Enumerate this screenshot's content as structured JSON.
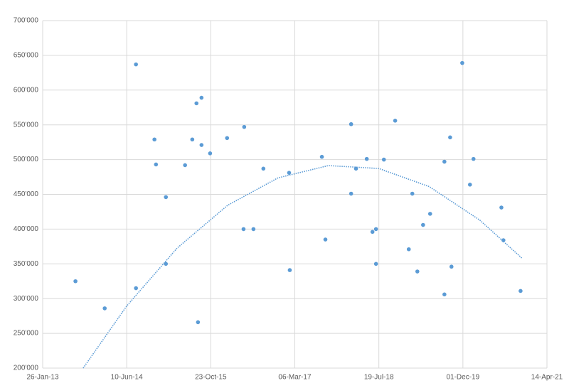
{
  "chart_data": {
    "type": "scatter",
    "x": [
      41495,
      41669,
      41855,
      41855,
      41965,
      41974,
      42033,
      42033,
      42147,
      42190,
      42215,
      42224,
      42245,
      42245,
      42296,
      42397,
      42495,
      42499,
      42554,
      42613,
      42766,
      42770,
      42961,
      42982,
      43135,
      43135,
      43164,
      43228,
      43262,
      43283,
      43283,
      43330,
      43397,
      43478,
      43499,
      43529,
      43563,
      43605,
      43690,
      43690,
      43724,
      43732,
      43796,
      43842,
      43863,
      44029,
      44041,
      44143
    ],
    "values": [
      325000,
      286000,
      637000,
      315000,
      529000,
      493000,
      446000,
      350000,
      492000,
      529000,
      581000,
      266000,
      589000,
      521000,
      509000,
      531000,
      400000,
      547000,
      400000,
      487000,
      481000,
      341000,
      504000,
      385000,
      551000,
      451000,
      487000,
      501000,
      396000,
      400000,
      350000,
      500000,
      556000,
      371000,
      451000,
      339000,
      406000,
      422000,
      497000,
      306000,
      532000,
      346000,
      639000,
      464000,
      501000,
      431000,
      384000,
      311000
    ],
    "color": "#5b9bd5",
    "trendline": {
      "type": "polynomial",
      "color": "#5b9bd5",
      "x": [
        41541,
        41800,
        42100,
        42400,
        42700,
        43000,
        43300,
        43600,
        43900,
        44152
      ],
      "values": [
        200000,
        289400,
        372700,
        434200,
        473700,
        491400,
        487200,
        461100,
        413000,
        358000
      ]
    },
    "xlim": [
      41300,
      44300
    ],
    "xticks": [
      {
        "value": 41300,
        "label": "26-Jan-13"
      },
      {
        "value": 41800,
        "label": "10-Jun-14"
      },
      {
        "value": 42300,
        "label": "23-Oct-15"
      },
      {
        "value": 42800,
        "label": "06-Mar-17"
      },
      {
        "value": 43300,
        "label": "19-Jul-18"
      },
      {
        "value": 43800,
        "label": "01-Dec-19"
      },
      {
        "value": 44300,
        "label": "14-Apr-21"
      }
    ],
    "ylim": [
      200000,
      700000
    ],
    "yticks": [
      {
        "value": 200000,
        "label": "200'000"
      },
      {
        "value": 250000,
        "label": "250'000"
      },
      {
        "value": 300000,
        "label": "300'000"
      },
      {
        "value": 350000,
        "label": "350'000"
      },
      {
        "value": 400000,
        "label": "400'000"
      },
      {
        "value": 450000,
        "label": "450'000"
      },
      {
        "value": 500000,
        "label": "500'000"
      },
      {
        "value": 550000,
        "label": "550'000"
      },
      {
        "value": 600000,
        "label": "600'000"
      },
      {
        "value": 650000,
        "label": "650'000"
      },
      {
        "value": 700000,
        "label": "700'000"
      }
    ],
    "grid": true
  }
}
